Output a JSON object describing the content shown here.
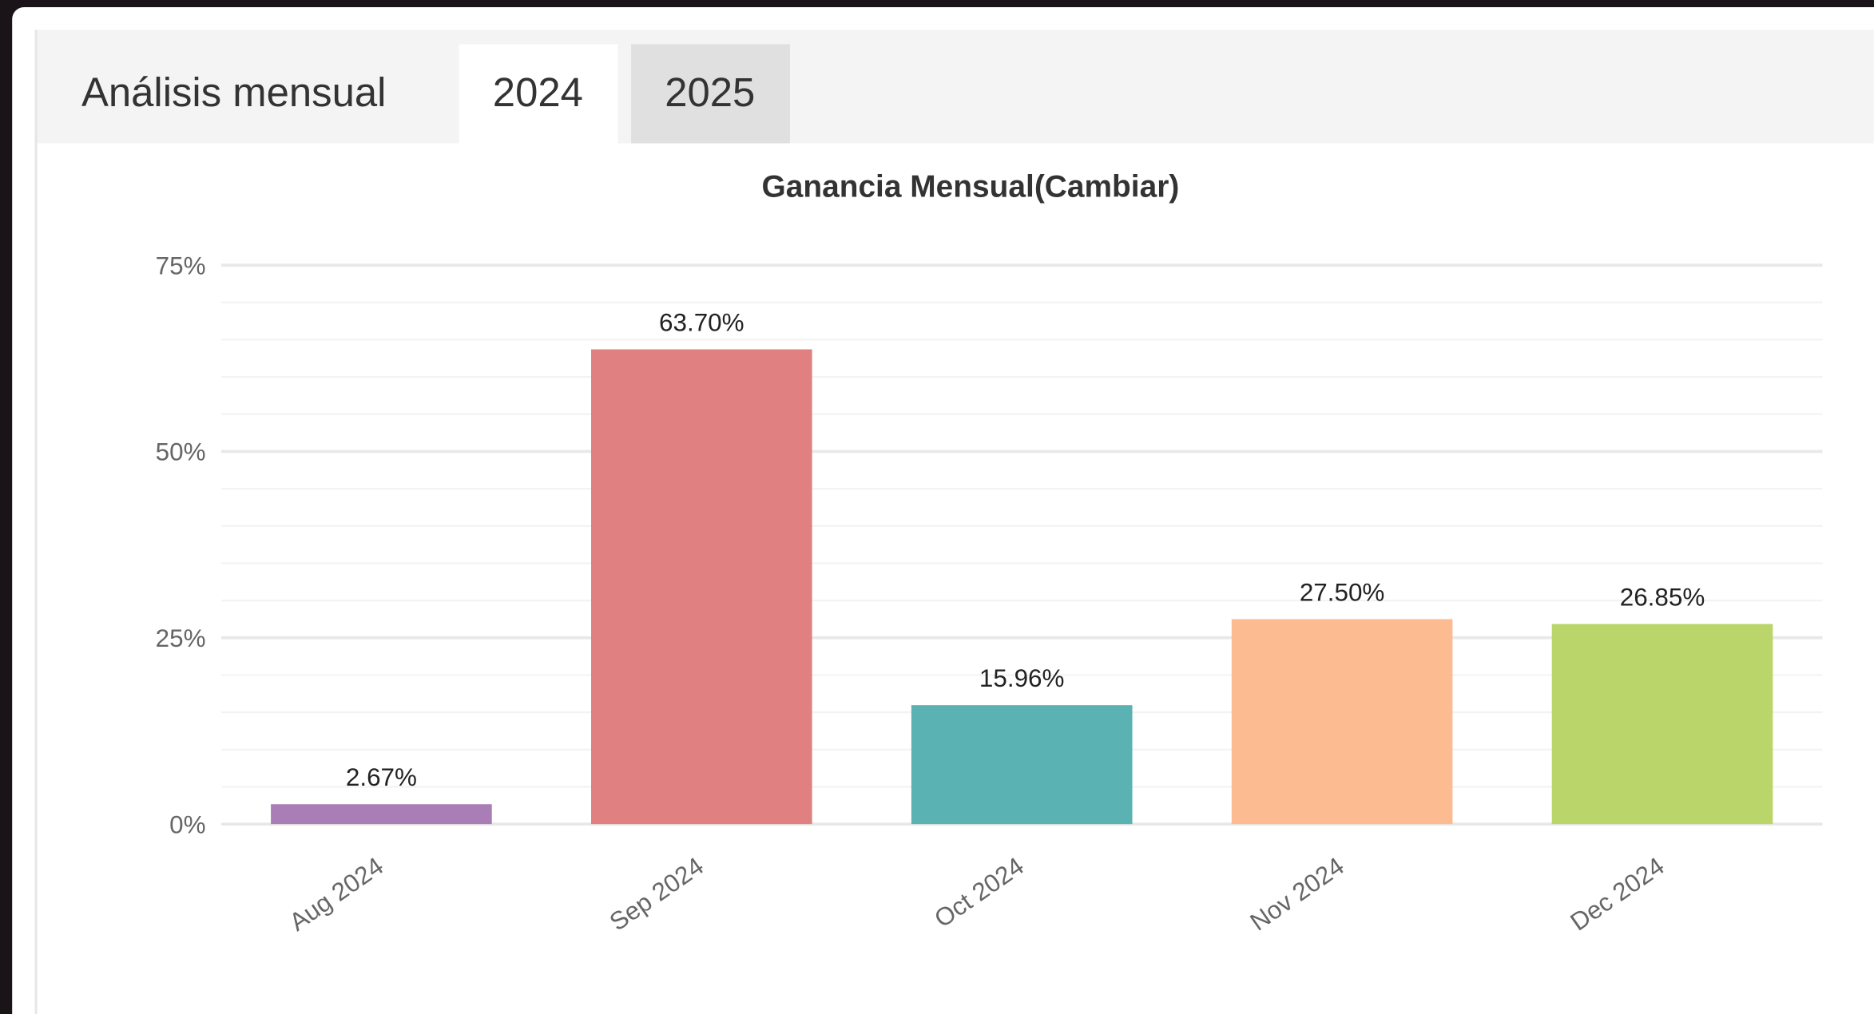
{
  "tabs": {
    "heading": "Análisis mensual",
    "items": [
      "2024",
      "2025"
    ]
  },
  "chart_data": {
    "type": "bar",
    "title": "Ganancia Mensual(Cambiar)",
    "categories": [
      "Aug 2024",
      "Sep 2024",
      "Oct 2024",
      "Nov 2024",
      "Dec 2024"
    ],
    "values": [
      2.67,
      63.7,
      15.96,
      27.5,
      26.85
    ],
    "value_labels": [
      "2.67%",
      "63.70%",
      "15.96%",
      "27.50%",
      "26.85%"
    ],
    "colors": [
      "#a97db6",
      "#e08080",
      "#5ab2b2",
      "#fdbb92",
      "#bad56a"
    ],
    "ylim": [
      0,
      75
    ],
    "yticks": [
      {
        "value": 0,
        "label": "0%"
      },
      {
        "value": 25,
        "label": "25%"
      },
      {
        "value": 50,
        "label": "50%"
      },
      {
        "value": 75,
        "label": "75%"
      }
    ],
    "minor_yticks": [
      5,
      10,
      15,
      20,
      30,
      35,
      40,
      45,
      55,
      60,
      65,
      70
    ],
    "grid": true
  }
}
